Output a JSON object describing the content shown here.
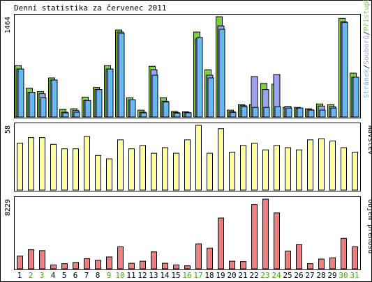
{
  "chart_data": {
    "type": "bar",
    "title": "Denní statistika za červenec 2011",
    "categories": [
      "1",
      "2",
      "3",
      "4",
      "5",
      "6",
      "7",
      "8",
      "9",
      "10",
      "11",
      "12",
      "13",
      "14",
      "15",
      "16",
      "17",
      "18",
      "19",
      "20",
      "21",
      "22",
      "23",
      "24",
      "25",
      "26",
      "27",
      "28",
      "29",
      "30",
      "31"
    ],
    "weekend_days": [
      "2",
      "3",
      "9",
      "10",
      "16",
      "17",
      "23",
      "24",
      "30",
      "31"
    ],
    "colors": {
      "weekday_label": "#000000",
      "weekend_label": "#44aa00",
      "pristupu": "#7dcc44",
      "souboru": "#9aa0f0",
      "stranek": "#6ab8f2",
      "navstev": "#ffff99",
      "objem": "#f47c7c",
      "border": "#000000"
    },
    "panels": [
      {
        "id": "traffic",
        "max_label": "1464",
        "ymax": 1464,
        "legend_parts": [
          "Stránek",
          "Souborů",
          "Přístupů"
        ],
        "legend_separator": "/",
        "series": [
          {
            "name": "Přístupů",
            "values": [
              750,
              420,
              370,
              570,
              110,
              120,
              290,
              430,
              750,
              1270,
              280,
              100,
              740,
              280,
              80,
              75,
              1240,
              690,
              1464,
              100,
              180,
              180,
              490,
              480,
              140,
              140,
              120,
              190,
              180,
              1440,
              640
            ]
          },
          {
            "name": "Souborů",
            "values": [
              700,
              360,
              340,
              540,
              70,
              95,
              240,
              400,
              700,
              1240,
              250,
              70,
              690,
              230,
              65,
              65,
              1140,
              610,
              1330,
              75,
              165,
              590,
              400,
              620,
              155,
              125,
              105,
              160,
              150,
              1390,
              580
            ]
          },
          {
            "name": "Stránek",
            "values": [
              700,
              360,
              280,
              540,
              60,
              70,
              240,
              400,
              700,
              1220,
              250,
              60,
              610,
              220,
              55,
              60,
              1160,
              570,
              1280,
              65,
              150,
              140,
              140,
              150,
              130,
              130,
              100,
              100,
              130,
              1380,
              580
            ]
          }
        ]
      },
      {
        "id": "visits",
        "max_label": "58",
        "ymax": 58,
        "legend_parts": [
          "Návštěv"
        ],
        "series": [
          {
            "name": "Návštěv",
            "values": [
              42,
              47,
              47,
              41,
              37,
              37,
              48,
              31,
              28,
              45,
              37,
              40,
              33,
              38,
              33,
              45,
              58,
              33,
              55,
              34,
              40,
              42,
              36,
              40,
              38,
              36,
              45,
              46,
              44,
              38,
              34
            ]
          }
        ]
      },
      {
        "id": "volume",
        "max_label": "8229",
        "ymax": 8229,
        "legend_parts": [
          "Objem přenosu"
        ],
        "series": [
          {
            "name": "Objem přenosu",
            "values": [
              1500,
              2250,
              2150,
              450,
              600,
              750,
              1200,
              1000,
              1400,
              2600,
              650,
              900,
              2000,
              650,
              450,
              350,
              2950,
              2450,
              6000,
              900,
              850,
              7600,
              8229,
              6600,
              2100,
              2850,
              600,
              1150,
              1300,
              3600,
              2600
            ]
          }
        ]
      }
    ]
  }
}
